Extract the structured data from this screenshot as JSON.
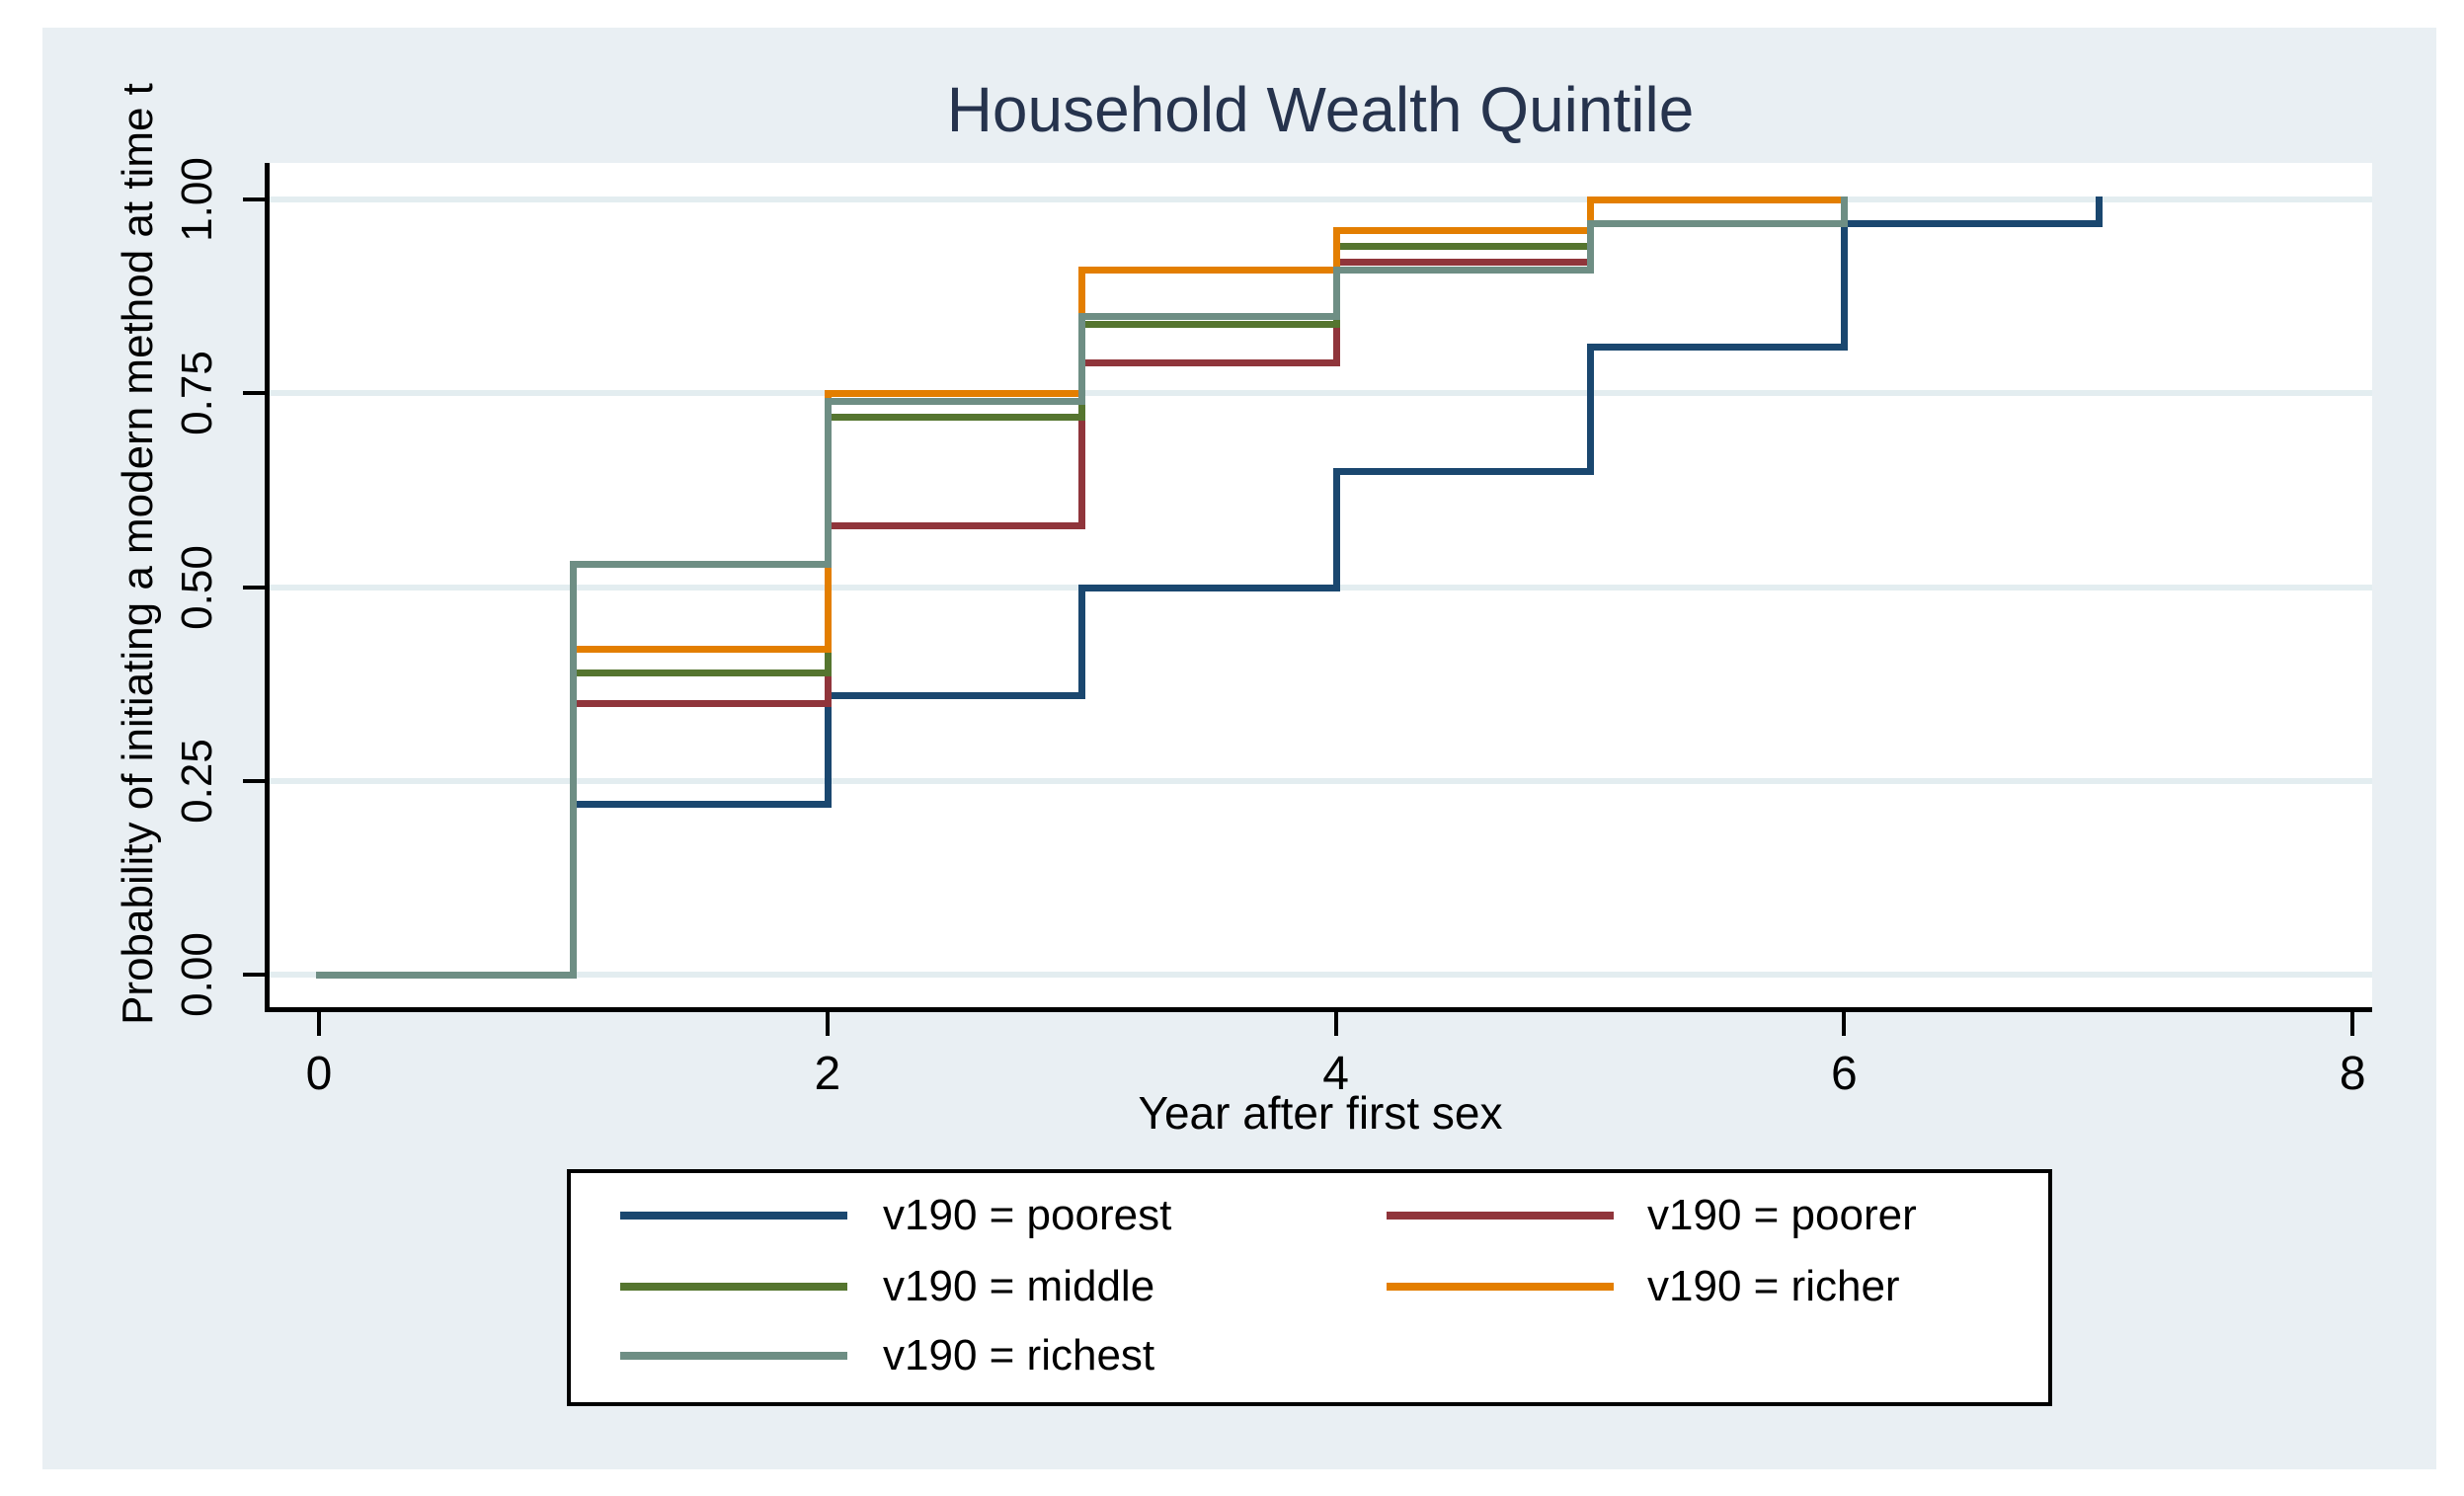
{
  "figure": {
    "background_color": "#e9eff3",
    "plot_background": "#ffffff",
    "gridline_color": "#e3edf0",
    "title_color": "#26334d"
  },
  "chart_data": {
    "type": "line",
    "subtype": "step-survival",
    "title": "Household Wealth Quintile",
    "xlabel": "Year after first sex",
    "ylabel": "Probability of initiating a modern method at time t",
    "xlim": [
      0,
      8
    ],
    "ylim": [
      0.0,
      1.0
    ],
    "grid": true,
    "legend_position": "bottom",
    "xticks": [
      {
        "label": "0",
        "value": 0
      },
      {
        "label": "2",
        "value": 2
      },
      {
        "label": "4",
        "value": 4
      },
      {
        "label": "6",
        "value": 6
      },
      {
        "label": "8",
        "value": 8
      }
    ],
    "yticks": [
      {
        "label": "0.00",
        "value": 0.0
      },
      {
        "label": "0.25",
        "value": 0.25
      },
      {
        "label": "0.50",
        "value": 0.5
      },
      {
        "label": "0.75",
        "value": 0.75
      },
      {
        "label": "1.00",
        "value": 1.0
      }
    ],
    "series": [
      {
        "name": "v190 = poorest",
        "color": "#1a476f",
        "steps": [
          [
            0,
            0
          ],
          [
            1,
            0.22
          ],
          [
            2,
            0.36
          ],
          [
            3,
            0.5
          ],
          [
            4,
            0.65
          ],
          [
            5,
            0.81
          ],
          [
            6,
            0.97
          ],
          [
            7,
            1.0
          ]
        ],
        "end_x": 7
      },
      {
        "name": "v190 = poorer",
        "color": "#90353b",
        "steps": [
          [
            0,
            0
          ],
          [
            1,
            0.35
          ],
          [
            2,
            0.58
          ],
          [
            3,
            0.79
          ],
          [
            4,
            0.92
          ],
          [
            5,
            1.0
          ]
        ],
        "end_x": 5
      },
      {
        "name": "v190 = middle",
        "color": "#55752f",
        "steps": [
          [
            0,
            0
          ],
          [
            1,
            0.39
          ],
          [
            2,
            0.72
          ],
          [
            3,
            0.84
          ],
          [
            4,
            0.94
          ],
          [
            5,
            1.0
          ]
        ],
        "end_x": 6
      },
      {
        "name": "v190 = richer",
        "color": "#e37e00",
        "steps": [
          [
            0,
            0
          ],
          [
            1,
            0.42
          ],
          [
            2,
            0.75
          ],
          [
            3,
            0.91
          ],
          [
            4,
            0.96
          ],
          [
            5,
            1.0
          ]
        ],
        "end_x": 6
      },
      {
        "name": "v190 = richest",
        "color": "#6e8e84",
        "steps": [
          [
            0,
            0
          ],
          [
            1,
            0.53
          ],
          [
            2,
            0.74
          ],
          [
            3,
            0.85
          ],
          [
            4,
            0.91
          ],
          [
            5,
            0.97
          ],
          [
            6,
            1.0
          ]
        ],
        "end_x": 6
      }
    ]
  },
  "legend": {
    "entries": [
      {
        "label": "v190 = poorest",
        "color": "#1a476f"
      },
      {
        "label": "v190 = poorer",
        "color": "#90353b"
      },
      {
        "label": "v190 = middle",
        "color": "#55752f"
      },
      {
        "label": "v190 = richer",
        "color": "#e37e00"
      },
      {
        "label": "v190 = richest",
        "color": "#6e8e84"
      }
    ]
  }
}
